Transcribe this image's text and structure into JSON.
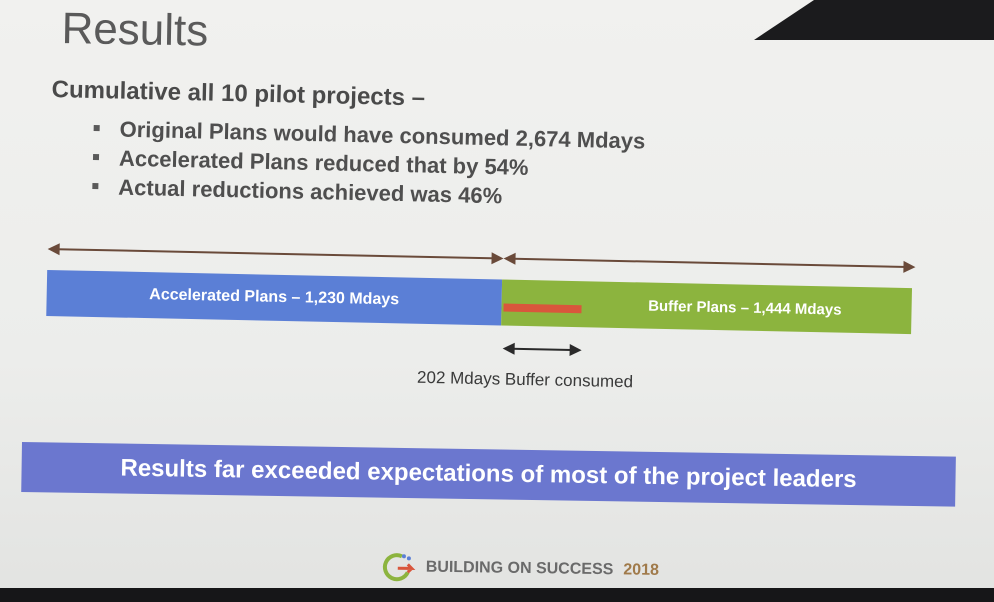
{
  "slide": {
    "title": "Results",
    "heading": "Cumulative all 10 pilot projects –",
    "bullets": [
      "Original Plans would have consumed 2,674 Mdays",
      "Accelerated Plans reduced that by 54%",
      "Actual reductions achieved was 46%"
    ],
    "diagram": {
      "accelerated_label": "Accelerated Plans – 1,230 Mdays",
      "buffer_label": "Buffer Plans – 1,444 Mdays",
      "consumed_label": "202 Mdays Buffer consumed",
      "colors": {
        "accelerated": "#5b7fd6",
        "buffer": "#8cb43e",
        "consumed": "#d9563c"
      }
    },
    "banner": "Results far exceeded expectations of most of the project leaders",
    "footer": {
      "text": "BUILDING ON SUCCESS",
      "year": "2018",
      "logo_icon": "g-arrow-logo-icon"
    }
  }
}
